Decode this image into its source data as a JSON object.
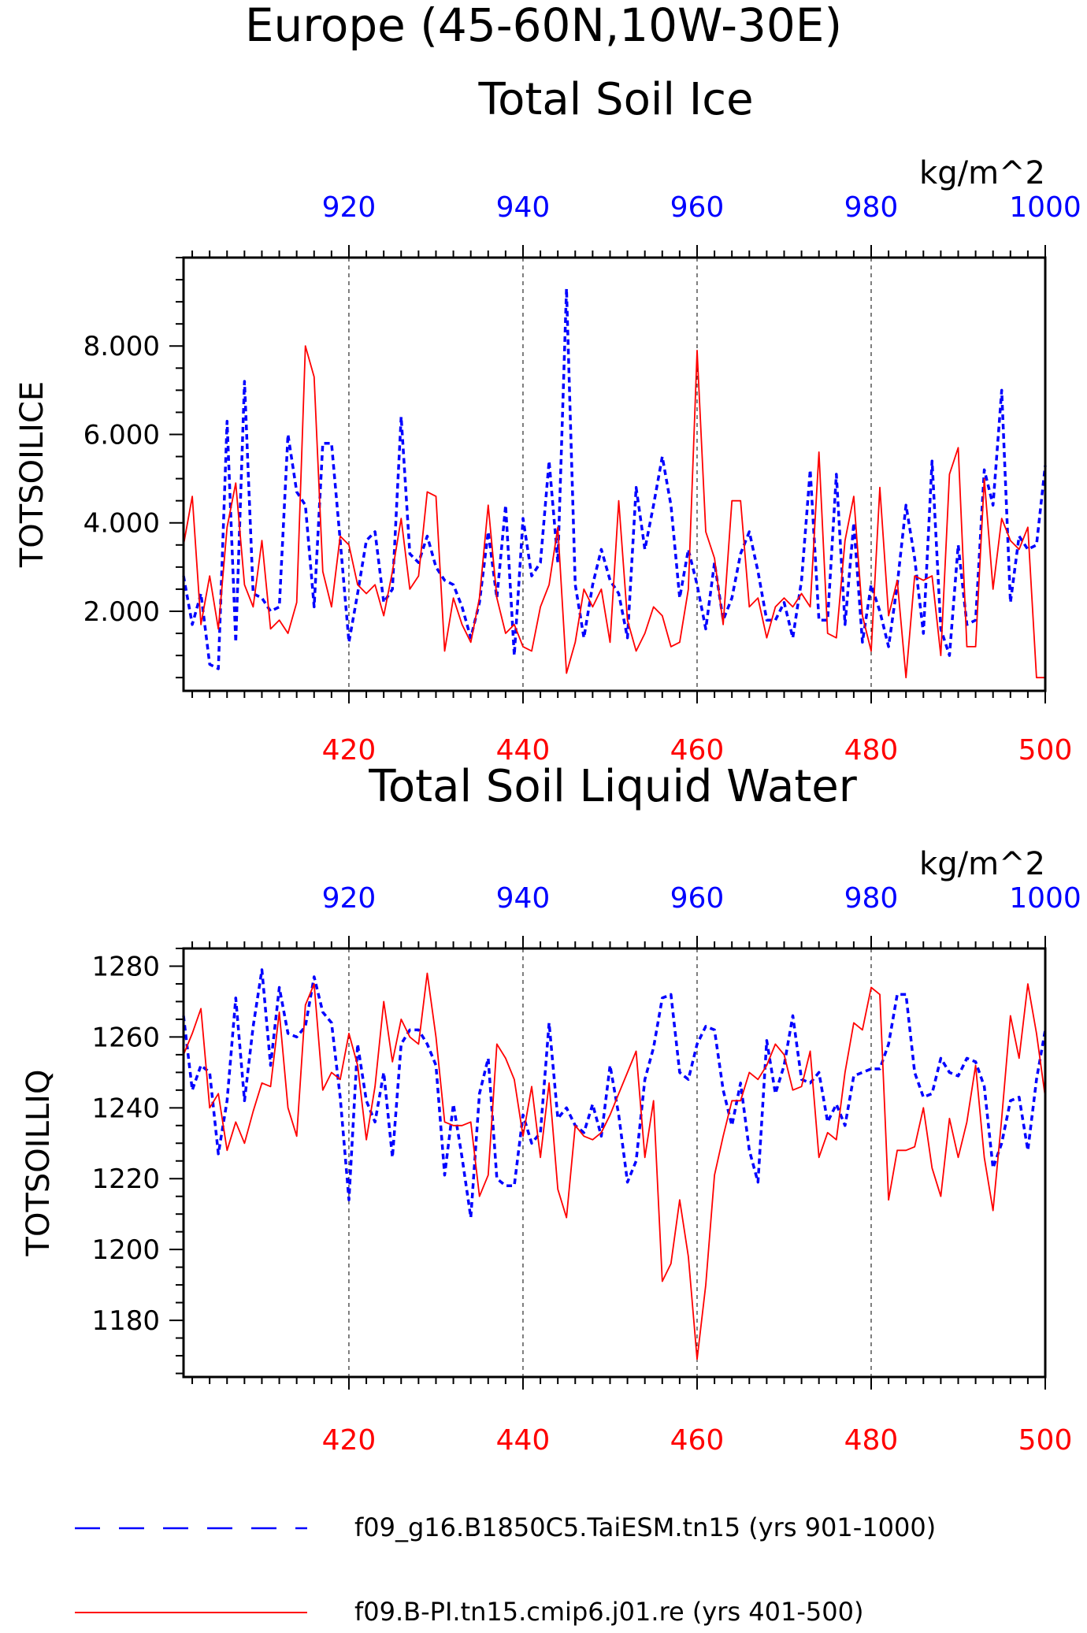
{
  "figure": {
    "title": "Europe (45-60N,10W-30E)"
  },
  "legend": [
    {
      "label": "f09_g16.B1850C5.TaiESM.tn15 (yrs 901-1000)",
      "color": "#0000ff",
      "style": "dashed"
    },
    {
      "label": "f09.B-PI.tn15.cmip6.j01.re (yrs 401-500)",
      "color": "#ff0000",
      "style": "solid"
    }
  ],
  "chart_data": [
    {
      "type": "line",
      "title": "Total Soil Ice",
      "ylabel": "TOTSOILICE",
      "units": "kg/m^2",
      "x_bottom": {
        "range": [
          401,
          500
        ],
        "ticks": [
          420,
          440,
          460,
          480,
          500
        ],
        "tick_labels": [
          "420",
          "440",
          "460",
          "480",
          "500"
        ],
        "color": "#ff0000"
      },
      "x_top": {
        "range": [
          901,
          1000
        ],
        "ticks": [
          920,
          940,
          960,
          980,
          1000
        ],
        "tick_labels": [
          "920",
          "940",
          "960",
          "980",
          "1000"
        ],
        "color": "#0000ff"
      },
      "ylim": [
        0.2,
        10.0
      ],
      "y_ticks": [
        2,
        4,
        6,
        8
      ],
      "y_tick_labels": [
        "2.000",
        "4.000",
        "6.000",
        "8.000"
      ],
      "grid": "vertical dashed at x ticks",
      "series": [
        {
          "name": "f09_g16.B1850C5.TaiESM.tn15 (yrs 901-1000)",
          "axis": "top",
          "color": "#0000ff",
          "style": "dashed",
          "x_start": 901,
          "values": [
            2.8,
            1.7,
            2.4,
            0.8,
            0.7,
            6.3,
            1.3,
            7.2,
            2.4,
            2.3,
            2.0,
            2.1,
            6.0,
            4.7,
            4.4,
            2.1,
            5.8,
            5.8,
            3.6,
            1.3,
            2.4,
            3.6,
            3.8,
            2.2,
            2.5,
            6.4,
            3.3,
            3.1,
            3.7,
            3.0,
            2.7,
            2.6,
            2.1,
            1.4,
            2.2,
            3.8,
            2.3,
            4.4,
            1.0,
            4.1,
            2.8,
            3.1,
            5.4,
            3.1,
            9.3,
            2.6,
            1.4,
            2.6,
            3.4,
            2.7,
            2.4,
            1.4,
            4.8,
            3.4,
            4.4,
            5.5,
            4.4,
            2.3,
            3.4,
            2.6,
            1.6,
            3.1,
            1.8,
            2.3,
            3.3,
            3.8,
            2.9,
            1.8,
            1.8,
            2.2,
            1.4,
            2.7,
            5.2,
            1.8,
            1.8,
            5.1,
            1.7,
            4.0,
            1.3,
            2.6,
            2.0,
            1.2,
            2.6,
            4.4,
            3.2,
            1.5,
            5.4,
            1.6,
            1.0,
            3.5,
            1.7,
            1.8,
            5.2,
            4.4,
            7.0,
            2.2,
            3.7,
            3.4,
            3.5,
            5.3
          ]
        },
        {
          "name": "f09.B-PI.tn15.cmip6.j01.re (yrs 401-500)",
          "axis": "bottom",
          "color": "#ff0000",
          "style": "solid",
          "x_start": 401,
          "values": [
            3.5,
            4.6,
            1.7,
            2.8,
            1.6,
            3.9,
            4.9,
            2.6,
            2.1,
            3.6,
            1.6,
            1.8,
            1.5,
            2.2,
            8.0,
            7.3,
            2.9,
            2.1,
            3.7,
            3.5,
            2.6,
            2.4,
            2.6,
            1.9,
            2.9,
            4.1,
            2.5,
            2.8,
            4.7,
            4.6,
            1.1,
            2.3,
            1.7,
            1.3,
            2.3,
            4.4,
            2.3,
            1.5,
            1.7,
            1.2,
            1.1,
            2.1,
            2.6,
            3.9,
            0.6,
            1.3,
            2.5,
            2.1,
            2.5,
            1.3,
            4.5,
            1.8,
            1.1,
            1.5,
            2.1,
            1.9,
            1.2,
            1.3,
            2.5,
            7.9,
            3.8,
            3.2,
            1.7,
            4.5,
            4.5,
            2.1,
            2.3,
            1.4,
            2.1,
            2.3,
            2.1,
            2.4,
            2.1,
            5.6,
            1.5,
            1.4,
            3.6,
            4.6,
            1.9,
            1.1,
            4.8,
            1.9,
            2.7,
            0.5,
            2.8,
            2.7,
            2.8,
            1.0,
            5.1,
            5.7,
            1.2,
            1.2,
            5.0,
            2.5,
            4.1,
            3.6,
            3.4,
            3.9,
            0.5,
            0.5
          ]
        }
      ]
    },
    {
      "type": "line",
      "title": "Total Soil Liquid Water",
      "ylabel": "TOTSOILLIQ",
      "units": "kg/m^2",
      "x_bottom": {
        "range": [
          401,
          500
        ],
        "ticks": [
          420,
          440,
          460,
          480,
          500
        ],
        "tick_labels": [
          "420",
          "440",
          "460",
          "480",
          "500"
        ],
        "color": "#ff0000"
      },
      "x_top": {
        "range": [
          901,
          1000
        ],
        "ticks": [
          920,
          940,
          960,
          980,
          1000
        ],
        "tick_labels": [
          "920",
          "940",
          "960",
          "980",
          "1000"
        ],
        "color": "#0000ff"
      },
      "ylim": [
        1164,
        1285
      ],
      "y_ticks": [
        1180,
        1200,
        1220,
        1240,
        1260,
        1280
      ],
      "y_tick_labels": [
        "1180",
        "1200",
        "1220",
        "1240",
        "1260",
        "1280"
      ],
      "grid": "vertical dashed at x ticks",
      "series": [
        {
          "name": "f09_g16.B1850C5.TaiESM.tn15 (yrs 901-1000)",
          "axis": "top",
          "color": "#0000ff",
          "style": "dashed",
          "x_start": 901,
          "values": [
            1266,
            1245,
            1252,
            1250,
            1227,
            1242,
            1271,
            1242,
            1263,
            1279,
            1252,
            1274,
            1261,
            1260,
            1263,
            1277,
            1267,
            1264,
            1243,
            1214,
            1258,
            1242,
            1236,
            1250,
            1226,
            1258,
            1262,
            1262,
            1258,
            1252,
            1221,
            1241,
            1226,
            1209,
            1244,
            1254,
            1220,
            1218,
            1218,
            1238,
            1230,
            1233,
            1264,
            1237,
            1240,
            1235,
            1233,
            1241,
            1232,
            1252,
            1238,
            1219,
            1225,
            1248,
            1257,
            1271,
            1272,
            1250,
            1248,
            1258,
            1263,
            1262,
            1245,
            1235,
            1247,
            1228,
            1219,
            1259,
            1244,
            1252,
            1266,
            1248,
            1247,
            1250,
            1236,
            1241,
            1235,
            1249,
            1250,
            1251,
            1251,
            1258,
            1272,
            1272,
            1250,
            1243,
            1244,
            1254,
            1250,
            1249,
            1254,
            1253,
            1246,
            1223,
            1230,
            1242,
            1243,
            1228,
            1248,
            1262
          ]
        },
        {
          "name": "f09.B-PI.tn15.cmip6.j01.re (yrs 401-500)",
          "axis": "bottom",
          "color": "#ff0000",
          "style": "solid",
          "x_start": 401,
          "values": [
            1255,
            1261,
            1268,
            1240,
            1244,
            1228,
            1236,
            1230,
            1239,
            1247,
            1246,
            1267,
            1240,
            1232,
            1269,
            1275,
            1245,
            1250,
            1248,
            1261,
            1252,
            1231,
            1246,
            1270,
            1253,
            1265,
            1260,
            1258,
            1278,
            1260,
            1236,
            1235,
            1235,
            1236,
            1215,
            1221,
            1258,
            1254,
            1248,
            1232,
            1246,
            1226,
            1247,
            1217,
            1209,
            1235,
            1232,
            1231,
            1233,
            1238,
            1244,
            1250,
            1256,
            1226,
            1242,
            1191,
            1196,
            1214,
            1198,
            1169,
            1190,
            1221,
            1232,
            1242,
            1242,
            1250,
            1248,
            1252,
            1258,
            1255,
            1245,
            1246,
            1256,
            1226,
            1233,
            1231,
            1250,
            1264,
            1262,
            1274,
            1272,
            1214,
            1228,
            1228,
            1229,
            1240,
            1223,
            1215,
            1237,
            1226,
            1236,
            1252,
            1226,
            1211,
            1237,
            1266,
            1254,
            1275,
            1261,
            1243
          ]
        }
      ]
    }
  ]
}
